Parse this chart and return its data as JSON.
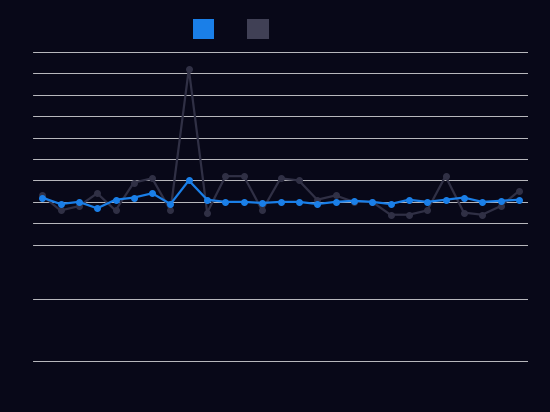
{
  "background_color": "#080818",
  "grid_color": "#ffffff",
  "blue_color": "#1a7fe8",
  "black_color": "#303045",
  "blue_series": [
    1.2,
    0.9,
    1.0,
    0.7,
    1.1,
    1.2,
    1.4,
    0.9,
    2.0,
    1.1,
    1.0,
    1.0,
    0.95,
    1.0,
    1.0,
    0.9,
    1.0,
    1.05,
    1.0,
    0.9,
    1.1,
    1.0,
    1.1,
    1.2,
    1.0,
    1.05,
    1.1
  ],
  "black_series": [
    1.3,
    0.6,
    0.8,
    1.4,
    0.6,
    1.9,
    2.1,
    0.6,
    7.2,
    0.5,
    2.2,
    2.2,
    0.6,
    2.1,
    2.0,
    1.1,
    1.3,
    1.0,
    1.0,
    0.4,
    0.4,
    0.6,
    2.2,
    0.5,
    0.4,
    0.8,
    1.5
  ],
  "ylim": [
    -1.5,
    8.5
  ],
  "xlim": [
    -0.5,
    26.5
  ],
  "marker_size": 4,
  "line_width": 1.6,
  "figsize": [
    5.5,
    4.12
  ],
  "dpi": 100,
  "legend_square_size": 12,
  "legend_blue_color": "#1a7fe8",
  "legend_black_color": "#404055"
}
